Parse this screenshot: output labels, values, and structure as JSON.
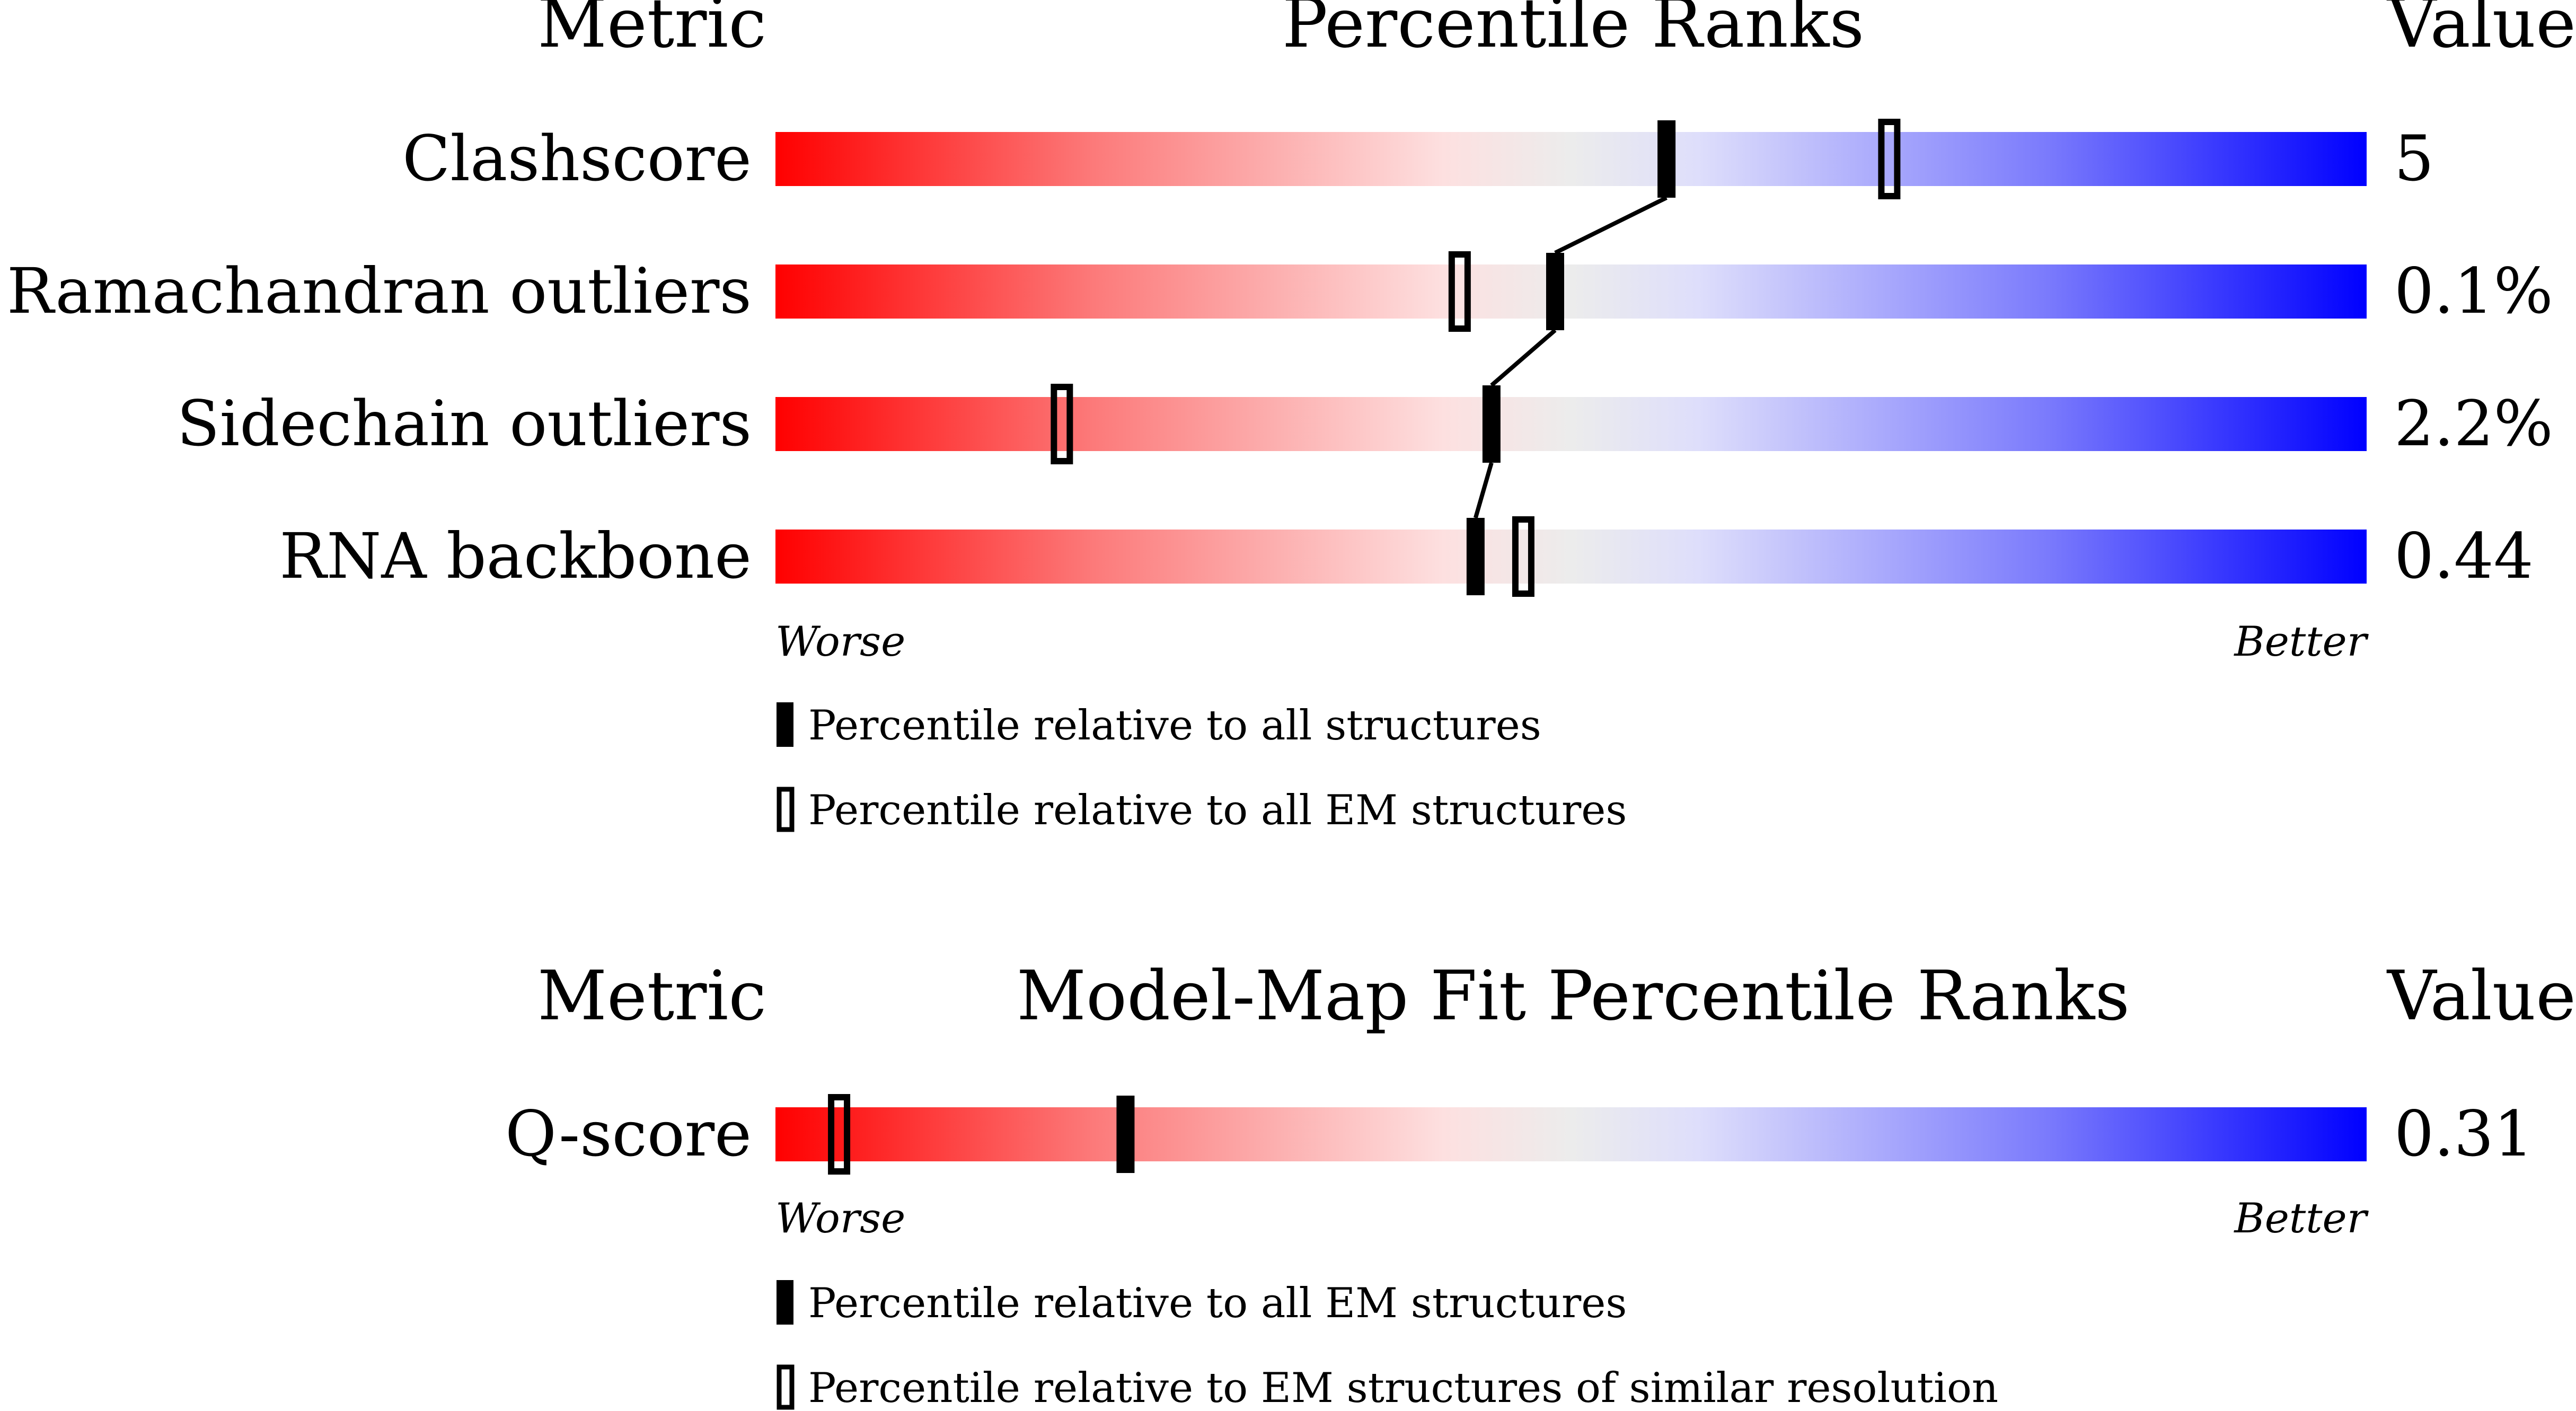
{
  "chart_data": [
    {
      "type": "bar",
      "header": {
        "metric": "Metric",
        "title": "Percentile Ranks",
        "value": "Value"
      },
      "rows": [
        {
          "metric": "Clashscore",
          "value": "5",
          "percentile_all": 56,
          "percentile_em": 70
        },
        {
          "metric": "Ramachandran outliers",
          "value": "0.1%",
          "percentile_all": 49,
          "percentile_em": 43
        },
        {
          "metric": "Sidechain outliers",
          "value": "2.2%",
          "percentile_all": 45,
          "percentile_em": 18
        },
        {
          "metric": "RNA backbone",
          "value": "0.44",
          "percentile_all": 44,
          "percentile_em": 47
        }
      ],
      "axis": {
        "left": "Worse",
        "right": "Better"
      },
      "legend": [
        {
          "marker": "filled",
          "label": "Percentile relative to all structures"
        },
        {
          "marker": "open",
          "label": "Percentile relative to all EM structures"
        }
      ],
      "xlim": [
        0,
        100
      ],
      "colors": {
        "worse": "#ff0000",
        "mid": "#ececec",
        "better": "#0000ff"
      }
    },
    {
      "type": "bar",
      "header": {
        "metric": "Metric",
        "title": "Model-Map Fit Percentile Ranks",
        "value": "Value"
      },
      "rows": [
        {
          "metric": "Q-score",
          "value": "0.31",
          "percentile_all": 22,
          "percentile_em": 4
        }
      ],
      "axis": {
        "left": "Worse",
        "right": "Better"
      },
      "legend": [
        {
          "marker": "filled",
          "label": "Percentile relative to all EM structures"
        },
        {
          "marker": "open",
          "label": "Percentile relative to EM structures of similar resolution"
        }
      ],
      "xlim": [
        0,
        100
      ],
      "colors": {
        "worse": "#ff0000",
        "mid": "#ececec",
        "better": "#0000ff"
      }
    }
  ]
}
